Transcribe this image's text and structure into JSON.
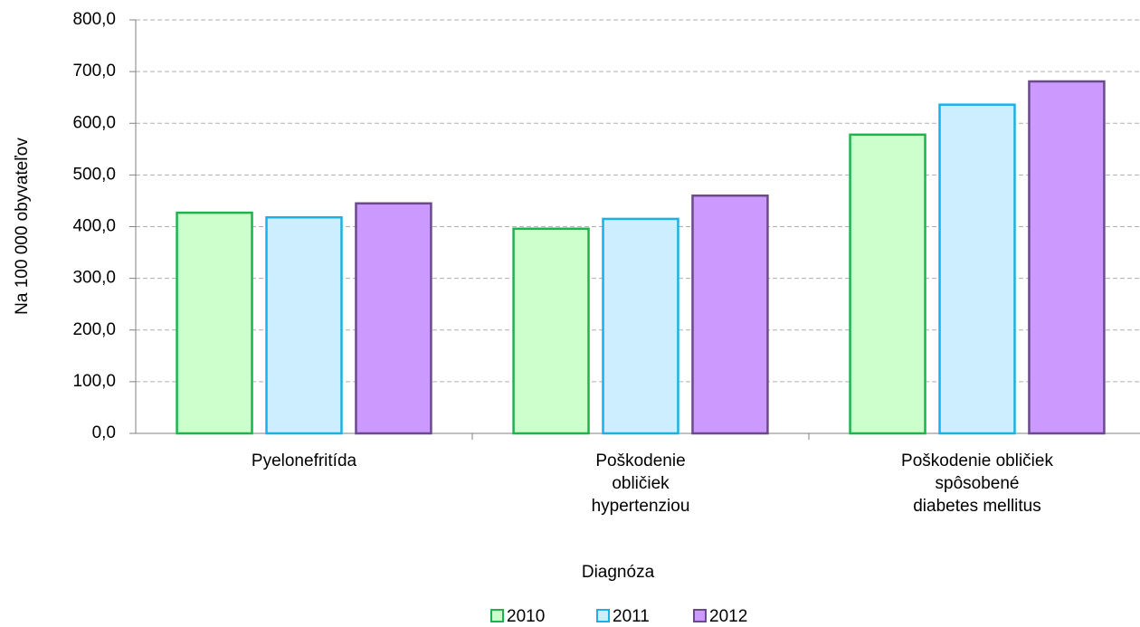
{
  "chart_data": {
    "type": "bar",
    "y_label": "Na 100 000 obyvateľov",
    "x_label": "Diagnóza",
    "categories": [
      "Pyelonefritída",
      "Poškodenie\nobličiek\nhypertenziou",
      "Poškodenie obličiek\nspôsobené\ndiabetes mellitus"
    ],
    "series": [
      {
        "name": "2010",
        "color": "#ccffcc",
        "edge": "#1fb34b",
        "values": [
          427,
          396,
          578
        ]
      },
      {
        "name": "2011",
        "color": "#cceeff",
        "edge": "#1ab0e8",
        "values": [
          418,
          415,
          636
        ]
      },
      {
        "name": "2012",
        "color": "#cc99ff",
        "edge": "#6a4a8a",
        "values": [
          445,
          460,
          681
        ]
      }
    ],
    "ylim": [
      0,
      800
    ],
    "yticks": [
      {
        "value": 0,
        "label": "0,0"
      },
      {
        "value": 100,
        "label": "100,0"
      },
      {
        "value": 200,
        "label": "200,0"
      },
      {
        "value": 300,
        "label": "300,0"
      },
      {
        "value": 400,
        "label": "400,0"
      },
      {
        "value": 500,
        "label": "500,0"
      },
      {
        "value": 600,
        "label": "600,0"
      },
      {
        "value": 700,
        "label": "700,0"
      },
      {
        "value": 800,
        "label": "800,0"
      }
    ],
    "grid": true,
    "legend": "bottom"
  }
}
